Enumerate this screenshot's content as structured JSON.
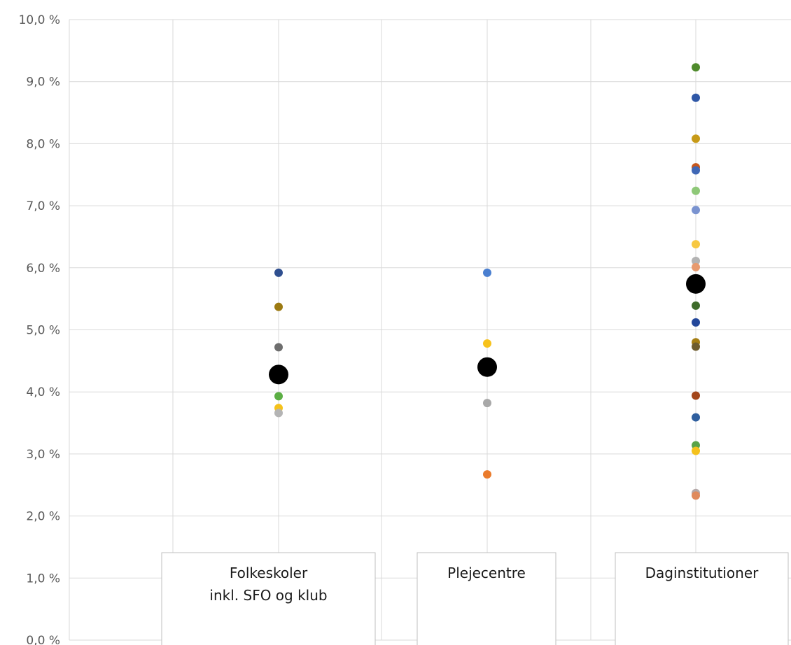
{
  "chart_data": {
    "type": "scatter",
    "title": "",
    "xlabel": "",
    "ylabel": "",
    "ylim": [
      0,
      10
    ],
    "y_ticks": [
      "0,0 %",
      "1,0 %",
      "2,0 %",
      "3,0 %",
      "4,0 %",
      "5,0 %",
      "6,0 %",
      "7,0 %",
      "8,0 %",
      "9,0 %",
      "10,0 %"
    ],
    "grid": true,
    "categories": [
      {
        "label_lines": [
          "Folkeskoler",
          "inkl. SFO og klub"
        ]
      },
      {
        "label_lines": [
          "Plejecentre"
        ]
      },
      {
        "label_lines": [
          "Daginstitutioner"
        ]
      }
    ],
    "points": [
      {
        "category": 0,
        "y": 5.92,
        "color": "#2f4f8f"
      },
      {
        "category": 0,
        "y": 5.37,
        "color": "#9c7a12"
      },
      {
        "category": 0,
        "y": 4.72,
        "color": "#6e6e6e"
      },
      {
        "category": 0,
        "y": 4.36,
        "color": "#b0501d"
      },
      {
        "category": 0,
        "y": 4.24,
        "color": "#3a74b8"
      },
      {
        "category": 0,
        "y": 3.93,
        "color": "#5bae44"
      },
      {
        "category": 0,
        "y": 3.74,
        "color": "#f5c21b"
      },
      {
        "category": 0,
        "y": 3.66,
        "color": "#b4b4b4"
      },
      {
        "category": 1,
        "y": 5.92,
        "color": "#4a7fd0"
      },
      {
        "category": 1,
        "y": 4.78,
        "color": "#f7c21b"
      },
      {
        "category": 1,
        "y": 3.82,
        "color": "#a8a8a8"
      },
      {
        "category": 1,
        "y": 2.67,
        "color": "#ea7b2c"
      },
      {
        "category": 2,
        "y": 9.23,
        "color": "#4f8a2c"
      },
      {
        "category": 2,
        "y": 8.74,
        "color": "#2f57a6"
      },
      {
        "category": 2,
        "y": 8.08,
        "color": "#c79a17"
      },
      {
        "category": 2,
        "y": 7.62,
        "color": "#c7571c"
      },
      {
        "category": 2,
        "y": 7.57,
        "color": "#3f67b5"
      },
      {
        "category": 2,
        "y": 7.24,
        "color": "#8ec878"
      },
      {
        "category": 2,
        "y": 6.93,
        "color": "#7a93d0"
      },
      {
        "category": 2,
        "y": 6.38,
        "color": "#f7c842"
      },
      {
        "category": 2,
        "y": 6.11,
        "color": "#b3b3b3"
      },
      {
        "category": 2,
        "y": 6.01,
        "color": "#e89a6e"
      },
      {
        "category": 2,
        "y": 5.39,
        "color": "#3e6b2a"
      },
      {
        "category": 2,
        "y": 5.12,
        "color": "#23479a"
      },
      {
        "category": 2,
        "y": 4.8,
        "color": "#a57e14"
      },
      {
        "category": 2,
        "y": 4.73,
        "color": "#6e5c2e"
      },
      {
        "category": 2,
        "y": 3.94,
        "color": "#a3461a"
      },
      {
        "category": 2,
        "y": 3.59,
        "color": "#2f5f9e"
      },
      {
        "category": 2,
        "y": 3.14,
        "color": "#5aa348"
      },
      {
        "category": 2,
        "y": 3.05,
        "color": "#f4c11c"
      },
      {
        "category": 2,
        "y": 2.37,
        "color": "#b4a8a8"
      },
      {
        "category": 2,
        "y": 2.33,
        "color": "#e08a5c"
      }
    ],
    "averages": [
      {
        "category": 0,
        "y": 4.28,
        "color": "#000000"
      },
      {
        "category": 1,
        "y": 4.4,
        "color": "#000000"
      },
      {
        "category": 2,
        "y": 5.74,
        "color": "#000000"
      }
    ]
  }
}
